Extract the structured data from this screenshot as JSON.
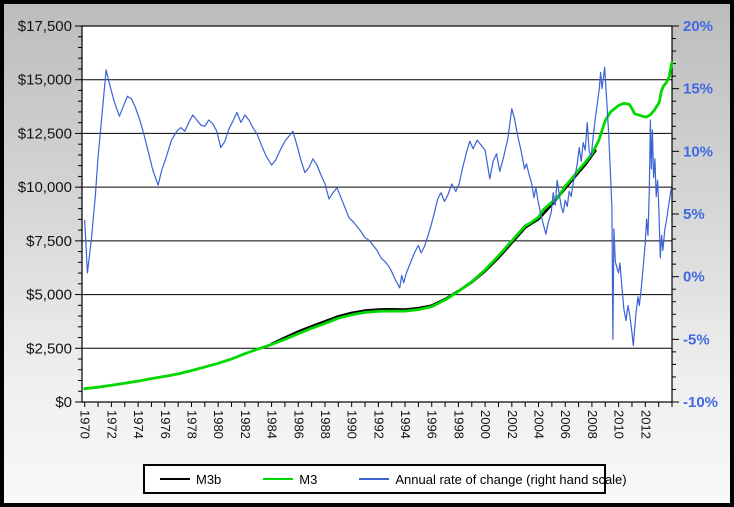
{
  "chart_data": {
    "type": "line",
    "title": "",
    "x_axis": {
      "min": 1970,
      "max": 2014,
      "tick_step": 1,
      "label_step": 2,
      "labels": [
        "1970",
        "1972",
        "1974",
        "1976",
        "1978",
        "1980",
        "1982",
        "1984",
        "1986",
        "1988",
        "1990",
        "1992",
        "1994",
        "1996",
        "1998",
        "2000",
        "2002",
        "2004",
        "2006",
        "2008",
        "2010",
        "2012"
      ]
    },
    "y_left": {
      "min": 0,
      "max": 17500,
      "step": 2500,
      "minor_step": 500,
      "labels": [
        "$0",
        "$2,500",
        "$5,000",
        "$7,500",
        "$10,000",
        "$12,500",
        "$15,000",
        "$17,500"
      ],
      "label_color": "#141414"
    },
    "y_right": {
      "min": -10,
      "max": 20,
      "step": 5,
      "minor_step": 1,
      "labels": [
        "-10%",
        "-5%",
        "0%",
        "5%",
        "10%",
        "15%",
        "20%"
      ],
      "label_color": "#4169e1"
    },
    "grid": {
      "show": true,
      "color": "#000000",
      "at_left_steps": true
    },
    "series": [
      {
        "name": "M3b",
        "color": "#000000",
        "width": 2.8,
        "axis": "left",
        "points": [
          [
            1984,
            2700
          ],
          [
            1985,
            2990
          ],
          [
            1986,
            3270
          ],
          [
            1987,
            3520
          ],
          [
            1988,
            3750
          ],
          [
            1989,
            3980
          ],
          [
            1990,
            4140
          ],
          [
            1991,
            4250
          ],
          [
            1992,
            4300
          ],
          [
            1993,
            4310
          ],
          [
            1994,
            4300
          ],
          [
            1995,
            4360
          ],
          [
            1996,
            4480
          ],
          [
            1997,
            4780
          ],
          [
            1998,
            5160
          ],
          [
            1999,
            5580
          ],
          [
            2000,
            6100
          ],
          [
            2001,
            6720
          ],
          [
            2002,
            7420
          ],
          [
            2003,
            8120
          ],
          [
            2004,
            8520
          ],
          [
            2005,
            9200
          ],
          [
            2006,
            9950
          ],
          [
            2007,
            10700
          ],
          [
            2007.5,
            11050
          ],
          [
            2008.25,
            11700
          ]
        ]
      },
      {
        "name": "M3",
        "color": "#00d900",
        "width": 2.8,
        "axis": "left",
        "points": [
          [
            1970,
            620
          ],
          [
            1971,
            690
          ],
          [
            1972,
            775
          ],
          [
            1973,
            875
          ],
          [
            1974,
            975
          ],
          [
            1975,
            1090
          ],
          [
            1976,
            1190
          ],
          [
            1977,
            1310
          ],
          [
            1978,
            1460
          ],
          [
            1979,
            1630
          ],
          [
            1980,
            1800
          ],
          [
            1981,
            2000
          ],
          [
            1982,
            2250
          ],
          [
            1983,
            2470
          ],
          [
            1984,
            2680
          ],
          [
            1985,
            2920
          ],
          [
            1986,
            3180
          ],
          [
            1987,
            3430
          ],
          [
            1988,
            3660
          ],
          [
            1989,
            3900
          ],
          [
            1990,
            4060
          ],
          [
            1991,
            4170
          ],
          [
            1992,
            4220
          ],
          [
            1993,
            4230
          ],
          [
            1994,
            4230
          ],
          [
            1995,
            4300
          ],
          [
            1996,
            4440
          ],
          [
            1997,
            4750
          ],
          [
            1998,
            5150
          ],
          [
            1999,
            5600
          ],
          [
            2000,
            6150
          ],
          [
            2001,
            6800
          ],
          [
            2002,
            7500
          ],
          [
            2002.7,
            7990
          ],
          [
            2003,
            8200
          ],
          [
            2003.4,
            8330
          ],
          [
            2004,
            8600
          ],
          [
            2004.4,
            8975
          ],
          [
            2005,
            9300
          ],
          [
            2005.5,
            9550
          ],
          [
            2006,
            10050
          ],
          [
            2006.5,
            10400
          ],
          [
            2007,
            10800
          ],
          [
            2007.5,
            11150
          ],
          [
            2008,
            11550
          ],
          [
            2008.5,
            12150
          ],
          [
            2009,
            13100
          ],
          [
            2009.4,
            13500
          ],
          [
            2009.7,
            13650
          ],
          [
            2010,
            13800
          ],
          [
            2010.4,
            13900
          ],
          [
            2010.8,
            13850
          ],
          [
            2011,
            13650
          ],
          [
            2011.2,
            13420
          ],
          [
            2011.5,
            13360
          ],
          [
            2011.8,
            13300
          ],
          [
            2012.1,
            13260
          ],
          [
            2012.4,
            13380
          ],
          [
            2012.7,
            13600
          ],
          [
            2012.9,
            13800
          ],
          [
            2013.05,
            13950
          ],
          [
            2013.2,
            14450
          ],
          [
            2013.35,
            14700
          ],
          [
            2013.5,
            14800
          ],
          [
            2013.65,
            14950
          ],
          [
            2013.8,
            15150
          ],
          [
            2013.95,
            15700
          ],
          [
            2014,
            15800
          ]
        ]
      },
      {
        "name": "Annual rate of change (right hand scale)",
        "color": "#3b63d4",
        "width": 1.2,
        "axis": "right",
        "points": [
          [
            1970.0,
            4.5
          ],
          [
            1970.2,
            0.3
          ],
          [
            1970.5,
            3.0
          ],
          [
            1970.8,
            6.5
          ],
          [
            1971.0,
            9.5
          ],
          [
            1971.3,
            13.0
          ],
          [
            1971.6,
            16.5
          ],
          [
            1971.9,
            15.2
          ],
          [
            1972.2,
            14.0
          ],
          [
            1972.6,
            12.8
          ],
          [
            1972.9,
            13.6
          ],
          [
            1973.2,
            14.4
          ],
          [
            1973.5,
            14.2
          ],
          [
            1973.8,
            13.5
          ],
          [
            1974.1,
            12.6
          ],
          [
            1974.4,
            11.5
          ],
          [
            1974.8,
            9.8
          ],
          [
            1975.1,
            8.5
          ],
          [
            1975.5,
            7.3
          ],
          [
            1975.8,
            8.6
          ],
          [
            1976.1,
            9.5
          ],
          [
            1976.5,
            10.9
          ],
          [
            1976.9,
            11.6
          ],
          [
            1977.2,
            11.9
          ],
          [
            1977.5,
            11.6
          ],
          [
            1977.8,
            12.3
          ],
          [
            1978.1,
            12.9
          ],
          [
            1978.4,
            12.5
          ],
          [
            1978.7,
            12.1
          ],
          [
            1979.0,
            12.0
          ],
          [
            1979.3,
            12.5
          ],
          [
            1979.6,
            12.2
          ],
          [
            1979.9,
            11.6
          ],
          [
            1980.2,
            10.3
          ],
          [
            1980.5,
            10.8
          ],
          [
            1980.8,
            11.8
          ],
          [
            1981.1,
            12.4
          ],
          [
            1981.4,
            13.1
          ],
          [
            1981.7,
            12.3
          ],
          [
            1982.0,
            12.9
          ],
          [
            1982.3,
            12.5
          ],
          [
            1982.6,
            11.9
          ],
          [
            1982.9,
            11.4
          ],
          [
            1983.2,
            10.6
          ],
          [
            1983.6,
            9.6
          ],
          [
            1984.0,
            8.9
          ],
          [
            1984.3,
            9.3
          ],
          [
            1984.7,
            10.2
          ],
          [
            1985.0,
            10.8
          ],
          [
            1985.3,
            11.2
          ],
          [
            1985.6,
            11.6
          ],
          [
            1985.9,
            10.5
          ],
          [
            1986.2,
            9.3
          ],
          [
            1986.5,
            8.3
          ],
          [
            1986.8,
            8.7
          ],
          [
            1987.1,
            9.4
          ],
          [
            1987.4,
            8.9
          ],
          [
            1987.7,
            8.1
          ],
          [
            1988.0,
            7.4
          ],
          [
            1988.3,
            6.2
          ],
          [
            1988.6,
            6.7
          ],
          [
            1988.9,
            7.1
          ],
          [
            1989.2,
            6.3
          ],
          [
            1989.5,
            5.5
          ],
          [
            1989.8,
            4.7
          ],
          [
            1990.1,
            4.4
          ],
          [
            1990.4,
            4.0
          ],
          [
            1990.7,
            3.6
          ],
          [
            1991.0,
            3.1
          ],
          [
            1991.3,
            2.9
          ],
          [
            1991.6,
            2.5
          ],
          [
            1991.9,
            2.1
          ],
          [
            1992.2,
            1.5
          ],
          [
            1992.5,
            1.2
          ],
          [
            1992.8,
            0.8
          ],
          [
            1993.0,
            0.4
          ],
          [
            1993.3,
            -0.3
          ],
          [
            1993.6,
            -0.9
          ],
          [
            1993.75,
            0.1
          ],
          [
            1993.9,
            -0.5
          ],
          [
            1994.1,
            0.3
          ],
          [
            1994.4,
            1.1
          ],
          [
            1994.7,
            1.9
          ],
          [
            1995.0,
            2.5
          ],
          [
            1995.2,
            1.9
          ],
          [
            1995.45,
            2.4
          ],
          [
            1995.7,
            3.2
          ],
          [
            1995.95,
            4.1
          ],
          [
            1996.2,
            5.1
          ],
          [
            1996.45,
            6.2
          ],
          [
            1996.7,
            6.7
          ],
          [
            1996.95,
            6.0
          ],
          [
            1997.2,
            6.5
          ],
          [
            1997.5,
            7.4
          ],
          [
            1997.8,
            6.8
          ],
          [
            1998.05,
            7.4
          ],
          [
            1998.3,
            8.6
          ],
          [
            1998.6,
            9.9
          ],
          [
            1998.85,
            10.8
          ],
          [
            1999.1,
            10.2
          ],
          [
            1999.4,
            10.9
          ],
          [
            1999.7,
            10.5
          ],
          [
            2000.0,
            10.1
          ],
          [
            2000.35,
            7.8
          ],
          [
            2000.6,
            9.2
          ],
          [
            2000.85,
            9.8
          ],
          [
            2001.1,
            8.4
          ],
          [
            2001.4,
            9.6
          ],
          [
            2001.7,
            11.0
          ],
          [
            2002.0,
            13.4
          ],
          [
            2002.2,
            12.6
          ],
          [
            2002.45,
            11.2
          ],
          [
            2002.7,
            10.0
          ],
          [
            2002.95,
            8.6
          ],
          [
            2003.1,
            9.0
          ],
          [
            2003.3,
            8.1
          ],
          [
            2003.5,
            7.4
          ],
          [
            2003.65,
            6.3
          ],
          [
            2003.8,
            7.1
          ],
          [
            2003.95,
            6.1
          ],
          [
            2004.15,
            5.1
          ],
          [
            2004.35,
            4.2
          ],
          [
            2004.55,
            3.4
          ],
          [
            2004.75,
            4.4
          ],
          [
            2004.95,
            5.1
          ],
          [
            2005.1,
            6.7
          ],
          [
            2005.25,
            5.7
          ],
          [
            2005.4,
            7.7
          ],
          [
            2005.55,
            6.6
          ],
          [
            2005.7,
            5.6
          ],
          [
            2005.85,
            5.1
          ],
          [
            2006.0,
            6.1
          ],
          [
            2006.15,
            5.6
          ],
          [
            2006.3,
            6.8
          ],
          [
            2006.45,
            6.4
          ],
          [
            2006.6,
            7.5
          ],
          [
            2006.75,
            8.1
          ],
          [
            2006.9,
            9.0
          ],
          [
            2007.05,
            10.3
          ],
          [
            2007.2,
            9.2
          ],
          [
            2007.35,
            10.7
          ],
          [
            2007.5,
            10.1
          ],
          [
            2007.65,
            12.3
          ],
          [
            2007.8,
            10.0
          ],
          [
            2007.95,
            9.6
          ],
          [
            2008.1,
            11.2
          ],
          [
            2008.25,
            12.6
          ],
          [
            2008.4,
            13.8
          ],
          [
            2008.55,
            15.0
          ],
          [
            2008.65,
            16.3
          ],
          [
            2008.75,
            15.0
          ],
          [
            2008.85,
            15.8
          ],
          [
            2008.95,
            16.7
          ],
          [
            2009.1,
            14.2
          ],
          [
            2009.25,
            11.5
          ],
          [
            2009.4,
            8.0
          ],
          [
            2009.5,
            5.5
          ],
          [
            2009.57,
            -5.0
          ],
          [
            2009.65,
            3.8
          ],
          [
            2009.75,
            1.2
          ],
          [
            2009.9,
            0.6
          ],
          [
            2010.0,
            0.3
          ],
          [
            2010.1,
            1.1
          ],
          [
            2010.25,
            -0.8
          ],
          [
            2010.4,
            -2.6
          ],
          [
            2010.55,
            -3.5
          ],
          [
            2010.7,
            -2.3
          ],
          [
            2010.85,
            -3.2
          ],
          [
            2011.0,
            -4.5
          ],
          [
            2011.1,
            -5.5
          ],
          [
            2011.2,
            -4.2
          ],
          [
            2011.3,
            -2.9
          ],
          [
            2011.45,
            -1.6
          ],
          [
            2011.55,
            -2.3
          ],
          [
            2011.7,
            -0.9
          ],
          [
            2011.85,
            0.9
          ],
          [
            2012.0,
            2.7
          ],
          [
            2012.1,
            4.6
          ],
          [
            2012.2,
            3.3
          ],
          [
            2012.3,
            6.9
          ],
          [
            2012.38,
            12.5
          ],
          [
            2012.46,
            8.6
          ],
          [
            2012.53,
            11.7
          ],
          [
            2012.62,
            7.9
          ],
          [
            2012.72,
            9.4
          ],
          [
            2012.82,
            6.4
          ],
          [
            2012.92,
            7.7
          ],
          [
            2013.02,
            5.3
          ],
          [
            2013.12,
            1.5
          ],
          [
            2013.22,
            3.3
          ],
          [
            2013.32,
            2.1
          ],
          [
            2013.45,
            3.7
          ],
          [
            2013.6,
            4.6
          ],
          [
            2013.72,
            5.5
          ],
          [
            2013.85,
            6.4
          ],
          [
            2013.95,
            7.0
          ]
        ]
      }
    ],
    "legend": {
      "position": "bottom",
      "items": [
        "M3b",
        "M3",
        "Annual rate of change (right hand scale)"
      ]
    }
  },
  "colors": {
    "plot_background": "#ffffff",
    "axis_and_grid": "#000000",
    "right_axis_text": "#4169e1",
    "m3b_line": "#000000",
    "m3_line": "#00d900",
    "rate_line": "#3b63d4"
  }
}
